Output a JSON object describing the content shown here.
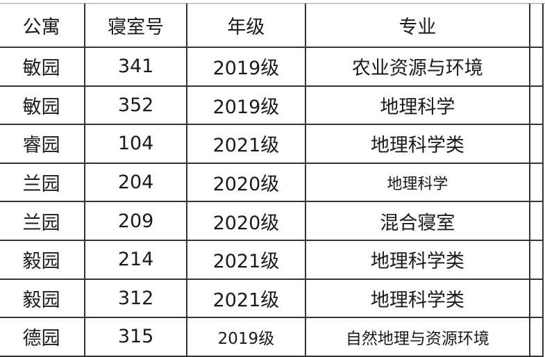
{
  "headers": [
    "公寓",
    "寝室号",
    "年级",
    "专业"
  ],
  "rows": [
    [
      "敏园",
      "341",
      "2019级",
      "农业资源与环境"
    ],
    [
      "敏园",
      "352",
      "2019级",
      "地理科学"
    ],
    [
      "睿园",
      "104",
      "2021级",
      "地理科学类"
    ],
    [
      "兰园",
      "204",
      "2020级",
      "地理科学"
    ],
    [
      "兰园",
      "209",
      "2020级",
      "混合寝室"
    ],
    [
      "毅园",
      "214",
      "2021级",
      "地理科学类"
    ],
    [
      "毅园",
      "312",
      "2021级",
      "地理科学类"
    ],
    [
      "德园",
      "315",
      "2019级",
      "自然地理与资源环境"
    ]
  ]
}
